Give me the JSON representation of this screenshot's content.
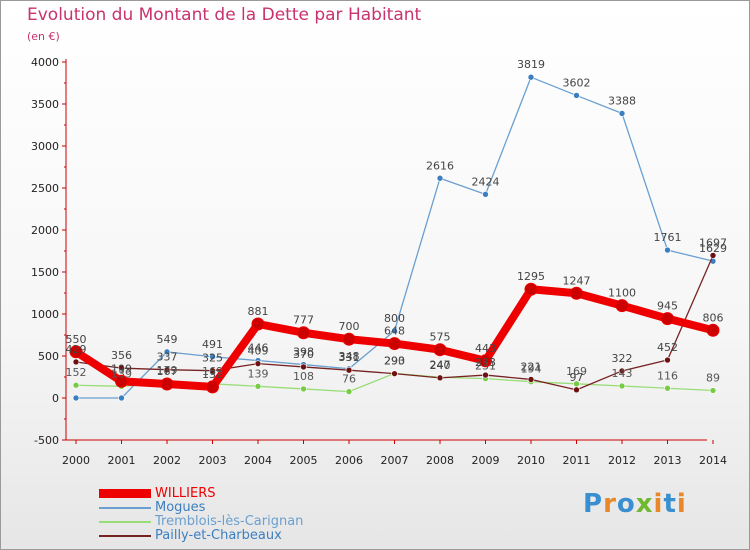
{
  "title": "Evolution du Montant de la Dette par Habitant",
  "subtitle": "(en €)",
  "logo": {
    "text": "Proxiti",
    "colors": [
      "#3a8fd0",
      "#e8882a",
      "#3a8fd0",
      "#6fb82f",
      "#e8882a",
      "#3a8fd0",
      "#e8882a"
    ]
  },
  "chart_data": {
    "type": "line",
    "x": [
      "2000",
      "2001",
      "2002",
      "2003",
      "2004",
      "2005",
      "2006",
      "2007",
      "2008",
      "2009",
      "2010",
      "2011",
      "2012",
      "2013",
      "2014"
    ],
    "ylim": [
      -500,
      4000
    ],
    "yticks": [
      -500,
      0,
      500,
      1000,
      1500,
      2000,
      2500,
      3000,
      3500,
      4000
    ],
    "grid": false,
    "legend_position": "bottom-left",
    "series": [
      {
        "name": "WILLIERS",
        "color": "#ee0000",
        "marker": "#cc0000",
        "values": [
          550,
          199,
          167,
          132,
          881,
          777,
          700,
          648,
          575,
          443,
          1295,
          1247,
          1100,
          945,
          806
        ]
      },
      {
        "name": "Mogues",
        "color": "#6a9fd0",
        "marker": "#3c7fc0",
        "values": [
          0,
          0,
          549,
          491,
          446,
          398,
          348,
          800,
          2616,
          2424,
          3819,
          3602,
          3388,
          1761,
          1629
        ]
      },
      {
        "name": "Tremblois-lès-Carignan",
        "color": "#99dd77",
        "marker": "#77cc44",
        "values": [
          152,
          139,
          179,
          169,
          139,
          108,
          76,
          293,
          247,
          231,
          194,
          169,
          143,
          116,
          89
        ]
      },
      {
        "name": "Pailly-et-Charbeaux",
        "color": "#772222",
        "marker": "#6e1010",
        "values": [
          429,
          356,
          337,
          325,
          409,
          370,
          331,
          290,
          240,
          273,
          221,
          97,
          322,
          452,
          1697
        ]
      }
    ],
    "data_labels": {
      "WILLIERS": [
        "550",
        "199",
        "167",
        "132",
        "881",
        "777",
        "700",
        "648",
        "575",
        "443",
        "1295",
        "1247",
        "1100",
        "945",
        "806"
      ],
      "Mogues": [
        "",
        "",
        "549",
        "491",
        "446",
        "398",
        "348",
        "800",
        "2616",
        "2424",
        "3819",
        "3602",
        "3388",
        "1761",
        "1629"
      ],
      "Tremblois-lès-Carignan": [
        "152",
        "139",
        "179",
        "169",
        "139",
        "108",
        "76",
        "293",
        "247",
        "231",
        "194",
        "169",
        "143",
        "116",
        "89"
      ],
      "Pailly-et-Charbeaux": [
        "429",
        "356",
        "337",
        "325",
        "409",
        "370",
        "331",
        "290",
        "240",
        "273",
        "221",
        "97",
        "322",
        "452",
        "1697"
      ]
    }
  }
}
